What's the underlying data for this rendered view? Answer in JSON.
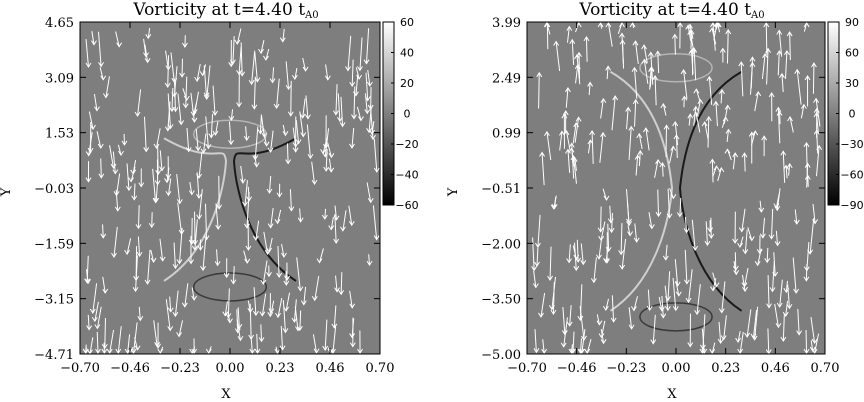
{
  "chart_data": [
    {
      "type": "heatmap",
      "title": "Vorticity at t=4.40 t",
      "title_subscript": "A0",
      "xlabel": "X",
      "ylabel": "Y",
      "xlim": [
        -0.7,
        0.7
      ],
      "ylim": [
        -4.71,
        4.65
      ],
      "x_ticks": [
        "-0.70",
        "-0.46",
        "-0.23",
        "0.00",
        "0.23",
        "0.46",
        "0.70"
      ],
      "y_ticks": [
        "4.65",
        "3.09",
        "1.53",
        "-0.03",
        "-1.59",
        "-3.15",
        "-4.71"
      ],
      "colorbar": {
        "range": [
          -60,
          60
        ],
        "ticks": [
          "60",
          "40",
          "20",
          "0",
          "-20",
          "-40",
          "-60"
        ],
        "colormap": "grayscale"
      },
      "overlay": "velocity vector arrows"
    },
    {
      "type": "heatmap",
      "title": "Vorticity at t=4.40 t",
      "title_subscript": "A0",
      "xlabel": "X",
      "ylabel": "Y",
      "xlim": [
        -0.7,
        0.7
      ],
      "ylim": [
        -5.0,
        3.99
      ],
      "x_ticks": [
        "-0.70",
        "-0.46",
        "-0.23",
        "0.00",
        "0.23",
        "0.46",
        "0.70"
      ],
      "y_ticks": [
        "3.99",
        "2.49",
        "0.99",
        "-0.51",
        "-2.00",
        "-3.50",
        "-5.00"
      ],
      "colorbar": {
        "range": [
          -90,
          90
        ],
        "ticks": [
          "90",
          "60",
          "30",
          "0",
          "-30",
          "-60",
          "-90"
        ],
        "colormap": "grayscale"
      },
      "overlay": "velocity vector arrows"
    }
  ]
}
